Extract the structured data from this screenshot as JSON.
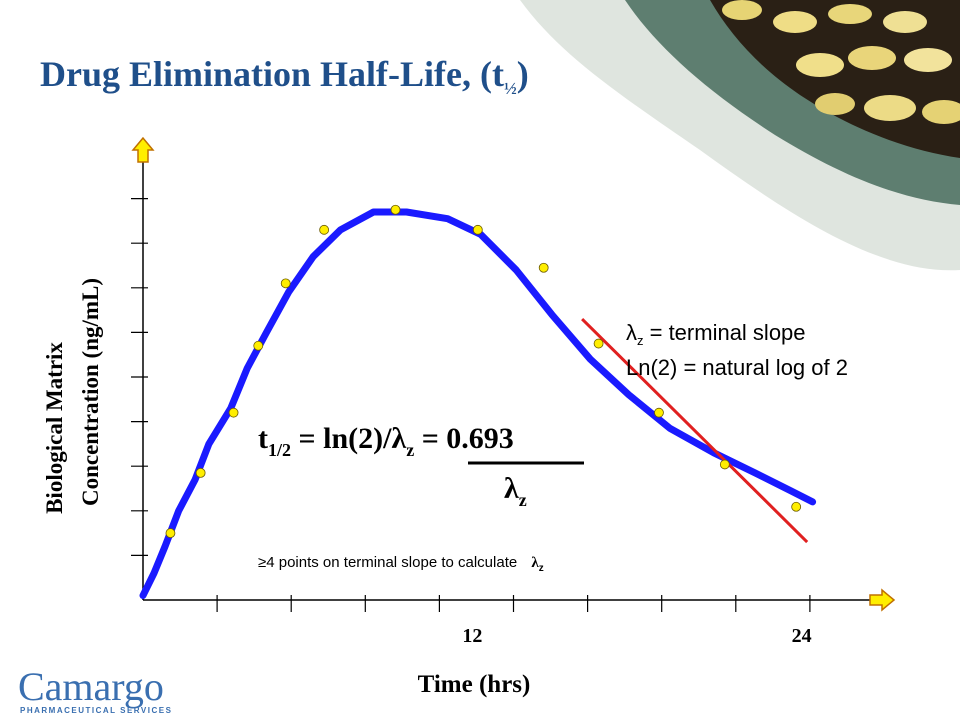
{
  "slide": {
    "title_main": "Drug Elimination Half-Life, (t",
    "title_sub": "½",
    "title_close": ")"
  },
  "colors": {
    "curve": "#1a1aff",
    "slope": "#e02020",
    "points": "#ffee00",
    "title": "#1f4f8a",
    "background_band": "#dfe5df",
    "accent_shape": "#5e7e70",
    "axis_arrow": "#ffee00"
  },
  "logo": {
    "name": "Camargo",
    "subtitle": "PHARMACEUTICAL SERVICES"
  },
  "formula": {
    "lhs": "t",
    "lhs_sub": "1/2",
    "middle": " = ln(2)/",
    "lambda": "λ",
    "lambda_sub": "z",
    "rhs": " = 0.693",
    "denominator": "λ",
    "denominator_sub": "z"
  },
  "legend": {
    "line1_symbol": "λ",
    "line1_sub": "z",
    "line1_text": " = terminal slope",
    "line2_text": "Ln(2) = natural log of 2"
  },
  "note": {
    "text": "≥4 points on terminal slope to calculate ",
    "symbol": "λ",
    "symbol_sub": "z"
  },
  "chart_data": {
    "type": "line",
    "xlabel": "Time (hrs)",
    "ylabel_line1": "Biological Matrix",
    "ylabel_line2": "Concentration (ng/mL)",
    "x_ticks": [
      {
        "value": 12,
        "label": "12"
      },
      {
        "value": 24,
        "label": "24"
      }
    ],
    "xlim": [
      0,
      27
    ],
    "ylim": [
      0,
      10
    ],
    "y_ticks": [
      1,
      2,
      3,
      4,
      5,
      6,
      7,
      8,
      9
    ],
    "grid": false,
    "series": [
      {
        "kind": "curve",
        "points": [
          [
            0,
            0.1
          ],
          [
            0.4,
            0.6
          ],
          [
            0.8,
            1.2
          ],
          [
            1.3,
            2.0
          ],
          [
            1.9,
            2.7
          ],
          [
            2.4,
            3.5
          ],
          [
            3.2,
            4.3
          ],
          [
            3.8,
            5.2
          ],
          [
            4.5,
            6.0
          ],
          [
            5.3,
            6.9
          ],
          [
            6.2,
            7.7
          ],
          [
            7.2,
            8.3
          ],
          [
            8.4,
            8.7
          ],
          [
            9.6,
            8.7
          ],
          [
            11.1,
            8.55
          ],
          [
            12.3,
            8.2
          ],
          [
            13.6,
            7.4
          ],
          [
            14.9,
            6.4
          ],
          [
            16.3,
            5.4
          ],
          [
            17.7,
            4.6
          ],
          [
            19.2,
            3.85
          ],
          [
            20.8,
            3.3
          ],
          [
            22.3,
            2.85
          ],
          [
            23.6,
            2.45
          ],
          [
            24.4,
            2.2
          ]
        ]
      },
      {
        "kind": "samples",
        "points": [
          [
            1.0,
            1.5
          ],
          [
            2.1,
            2.85
          ],
          [
            3.3,
            4.2
          ],
          [
            4.2,
            5.7
          ],
          [
            5.2,
            7.1
          ],
          [
            6.6,
            8.3
          ],
          [
            9.2,
            8.75
          ],
          [
            12.2,
            8.3
          ],
          [
            14.6,
            7.45
          ],
          [
            16.6,
            5.75
          ],
          [
            18.8,
            4.2
          ],
          [
            21.2,
            3.04
          ],
          [
            23.8,
            2.09
          ]
        ]
      },
      {
        "kind": "terminal-slope",
        "points": [
          [
            16.0,
            6.3
          ],
          [
            24.2,
            1.3
          ]
        ]
      }
    ]
  }
}
